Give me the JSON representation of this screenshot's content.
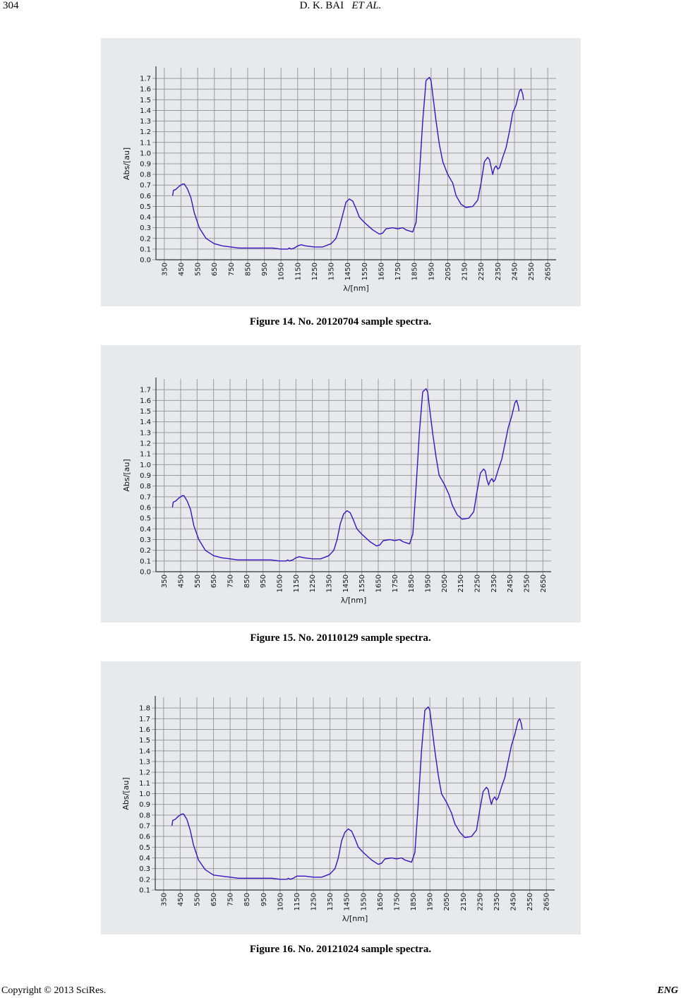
{
  "header": {
    "page_number": "304",
    "authors": "D. K. BAI",
    "et_al": "ET AL."
  },
  "footer": {
    "copyright": "Copyright © 2013 SciRes.",
    "journal": "ENG"
  },
  "colors": {
    "panel_bg": "#e8e9ed",
    "grid": "#9b9b9b",
    "line": "#3a12c4"
  },
  "figures": [
    {
      "caption": "Figure 14. No. 20120704 sample spectra.",
      "chart_data": {
        "type": "line",
        "xlabel": "λ/[nm]",
        "ylabel": "Abs/[au]",
        "xlim": [
          300,
          2700
        ],
        "ylim": [
          0.0,
          1.8
        ],
        "xticks": [
          350,
          450,
          550,
          650,
          750,
          850,
          950,
          1050,
          1150,
          1250,
          1350,
          1450,
          1550,
          1650,
          1750,
          1850,
          1950,
          2050,
          2150,
          2250,
          2350,
          2450,
          2550,
          2650
        ],
        "yticks": [
          "0.0",
          "0.1",
          "0.2",
          "0.3",
          "0.4",
          "0.5",
          "0.6",
          "0.7",
          "0.8",
          "0.9",
          "1.0",
          "1.1",
          "1.2",
          "1.3",
          "1.4",
          "1.5",
          "1.6",
          "1.7"
        ],
        "series": [
          {
            "x": [
              400,
              405,
              420,
              440,
              460,
              470,
              490,
              510,
              530,
              560,
              600,
              650,
              700,
              800,
              900,
              1000,
              1050,
              1090,
              1100,
              1110,
              1130,
              1150,
              1170,
              1200,
              1250,
              1300,
              1350,
              1380,
              1400,
              1420,
              1440,
              1460,
              1470,
              1480,
              1500,
              1520,
              1550,
              1600,
              1640,
              1660,
              1680,
              1720,
              1750,
              1780,
              1800,
              1820,
              1840,
              1860,
              1880,
              1900,
              1920,
              1940,
              1950,
              1960,
              1980,
              2000,
              2020,
              2050,
              2080,
              2100,
              2130,
              2160,
              2200,
              2230,
              2250,
              2270,
              2290,
              2300,
              2310,
              2320,
              2330,
              2340,
              2350,
              2360,
              2380,
              2400,
              2420,
              2440,
              2460,
              2480,
              2490,
              2500,
              2505
            ],
            "values": [
              0.6,
              0.65,
              0.66,
              0.69,
              0.71,
              0.71,
              0.66,
              0.58,
              0.44,
              0.3,
              0.2,
              0.15,
              0.13,
              0.11,
              0.11,
              0.11,
              0.1,
              0.1,
              0.11,
              0.1,
              0.11,
              0.13,
              0.14,
              0.13,
              0.12,
              0.12,
              0.15,
              0.2,
              0.3,
              0.42,
              0.54,
              0.57,
              0.56,
              0.55,
              0.48,
              0.4,
              0.35,
              0.28,
              0.24,
              0.25,
              0.29,
              0.3,
              0.29,
              0.3,
              0.28,
              0.27,
              0.26,
              0.35,
              0.8,
              1.3,
              1.68,
              1.71,
              1.68,
              1.55,
              1.3,
              1.08,
              0.92,
              0.8,
              0.72,
              0.6,
              0.52,
              0.49,
              0.5,
              0.56,
              0.72,
              0.92,
              0.96,
              0.94,
              0.87,
              0.8,
              0.86,
              0.88,
              0.85,
              0.86,
              0.96,
              1.05,
              1.2,
              1.38,
              1.45,
              1.58,
              1.6,
              1.55,
              1.5
            ]
          }
        ]
      }
    },
    {
      "caption": "Figure 15. No. 20110129 sample spectra.",
      "chart_data": {
        "type": "line",
        "xlabel": "λ/[nm]",
        "ylabel": "Abs/[au]",
        "xlim": [
          300,
          2700
        ],
        "ylim": [
          0.0,
          1.8
        ],
        "xticks": [
          350,
          450,
          550,
          650,
          750,
          850,
          950,
          1050,
          1150,
          1250,
          1350,
          1450,
          1550,
          1650,
          1750,
          1850,
          1950,
          2050,
          2150,
          2250,
          2350,
          2450,
          2550,
          2650
        ],
        "yticks": [
          "0.0",
          "0.1",
          "0.2",
          "0.3",
          "0.4",
          "0.5",
          "0.6",
          "0.7",
          "0.8",
          "0.9",
          "1.0",
          "1.1",
          "1.2",
          "1.3",
          "1.4",
          "1.5",
          "1.6",
          "1.7"
        ],
        "series": [
          {
            "x": [
              400,
              405,
              420,
              440,
              460,
              470,
              490,
              510,
              530,
              560,
              600,
              650,
              700,
              800,
              900,
              1000,
              1050,
              1090,
              1100,
              1110,
              1130,
              1150,
              1170,
              1200,
              1250,
              1300,
              1350,
              1380,
              1400,
              1420,
              1440,
              1460,
              1470,
              1480,
              1500,
              1520,
              1550,
              1600,
              1640,
              1660,
              1680,
              1720,
              1750,
              1780,
              1800,
              1820,
              1840,
              1860,
              1880,
              1900,
              1920,
              1940,
              1950,
              1960,
              1980,
              2000,
              2020,
              2050,
              2080,
              2100,
              2130,
              2160,
              2200,
              2230,
              2250,
              2270,
              2290,
              2300,
              2310,
              2320,
              2330,
              2340,
              2350,
              2360,
              2380,
              2400,
              2420,
              2440,
              2460,
              2480,
              2490,
              2500,
              2505
            ],
            "values": [
              0.6,
              0.65,
              0.66,
              0.69,
              0.71,
              0.71,
              0.66,
              0.58,
              0.43,
              0.3,
              0.2,
              0.15,
              0.13,
              0.11,
              0.11,
              0.11,
              0.1,
              0.1,
              0.11,
              0.1,
              0.11,
              0.13,
              0.14,
              0.13,
              0.12,
              0.12,
              0.15,
              0.2,
              0.3,
              0.45,
              0.54,
              0.57,
              0.56,
              0.55,
              0.48,
              0.4,
              0.35,
              0.28,
              0.24,
              0.25,
              0.29,
              0.3,
              0.29,
              0.3,
              0.28,
              0.27,
              0.26,
              0.35,
              0.8,
              1.3,
              1.68,
              1.71,
              1.68,
              1.55,
              1.3,
              1.08,
              0.9,
              0.82,
              0.72,
              0.62,
              0.53,
              0.49,
              0.5,
              0.56,
              0.75,
              0.92,
              0.96,
              0.94,
              0.86,
              0.81,
              0.85,
              0.87,
              0.84,
              0.86,
              0.96,
              1.05,
              1.2,
              1.35,
              1.45,
              1.58,
              1.6,
              1.55,
              1.5
            ]
          }
        ]
      }
    },
    {
      "caption": "Figure 16. No. 20121024 sample spectra.",
      "chart_data": {
        "type": "line",
        "xlabel": "λ/[nm]",
        "ylabel": "Abs/[au]",
        "xlim": [
          300,
          2700
        ],
        "ylim": [
          0.1,
          1.9
        ],
        "xticks": [
          350,
          450,
          550,
          650,
          750,
          850,
          950,
          1050,
          1150,
          1250,
          1350,
          1450,
          1550,
          1650,
          1750,
          1850,
          1950,
          2050,
          2150,
          2250,
          2350,
          2450,
          2550,
          2650
        ],
        "yticks": [
          "0.1",
          "0.2",
          "0.3",
          "0.4",
          "0.5",
          "0.6",
          "0.7",
          "0.8",
          "0.9",
          "1.0",
          "1.1",
          "1.2",
          "1.3",
          "1.4",
          "1.5",
          "1.6",
          "1.7",
          "1.8"
        ],
        "series": [
          {
            "x": [
              400,
              405,
              420,
              440,
              460,
              470,
              490,
              510,
              530,
              560,
              600,
              650,
              700,
              800,
              900,
              1000,
              1050,
              1090,
              1100,
              1110,
              1130,
              1150,
              1170,
              1200,
              1250,
              1300,
              1350,
              1380,
              1400,
              1420,
              1440,
              1460,
              1470,
              1480,
              1500,
              1520,
              1550,
              1600,
              1640,
              1660,
              1680,
              1720,
              1750,
              1780,
              1800,
              1820,
              1840,
              1860,
              1880,
              1900,
              1920,
              1940,
              1950,
              1960,
              1980,
              2000,
              2020,
              2050,
              2080,
              2100,
              2130,
              2160,
              2200,
              2230,
              2250,
              2270,
              2290,
              2300,
              2310,
              2320,
              2330,
              2340,
              2350,
              2360,
              2380,
              2400,
              2420,
              2440,
              2460,
              2480,
              2490,
              2500,
              2505
            ],
            "values": [
              0.7,
              0.75,
              0.76,
              0.79,
              0.81,
              0.81,
              0.76,
              0.66,
              0.52,
              0.38,
              0.29,
              0.24,
              0.23,
              0.21,
              0.21,
              0.21,
              0.2,
              0.2,
              0.21,
              0.2,
              0.21,
              0.23,
              0.23,
              0.23,
              0.22,
              0.22,
              0.25,
              0.3,
              0.4,
              0.56,
              0.64,
              0.67,
              0.66,
              0.65,
              0.58,
              0.5,
              0.45,
              0.38,
              0.34,
              0.35,
              0.39,
              0.4,
              0.39,
              0.4,
              0.38,
              0.37,
              0.36,
              0.45,
              0.9,
              1.4,
              1.78,
              1.81,
              1.78,
              1.65,
              1.4,
              1.18,
              1.0,
              0.92,
              0.82,
              0.72,
              0.64,
              0.59,
              0.6,
              0.66,
              0.85,
              1.02,
              1.06,
              1.04,
              0.96,
              0.9,
              0.95,
              0.97,
              0.94,
              0.96,
              1.06,
              1.15,
              1.3,
              1.45,
              1.55,
              1.68,
              1.7,
              1.65,
              1.6
            ]
          }
        ]
      }
    }
  ]
}
